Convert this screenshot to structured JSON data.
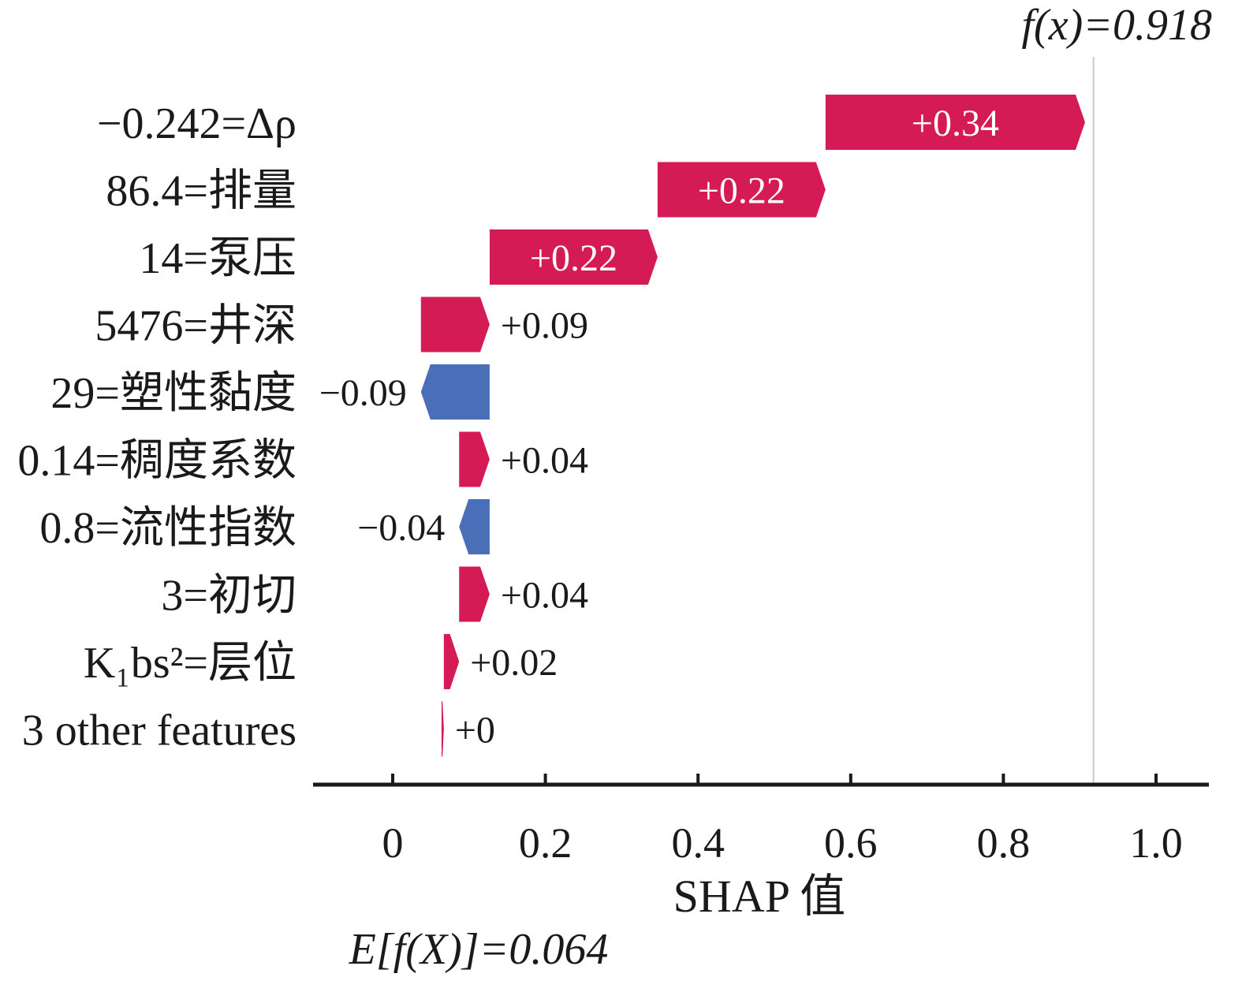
{
  "chart_data": {
    "type": "bar",
    "subtype": "shap-waterfall",
    "xlabel": "SHAP 值",
    "base_value_label": "E[f(X)]=0.064",
    "base_value": 0.064,
    "output_label": "f(x)=0.918",
    "output_value": 0.918,
    "xlim": [
      -0.105,
      1.07
    ],
    "xticks": [
      0,
      0.2,
      0.4,
      0.6,
      0.8,
      1.0
    ],
    "xtick_labels": [
      "0",
      "0.2",
      "0.4",
      "0.6",
      "0.8",
      "1.0"
    ],
    "features": [
      {
        "label": "−0.242=Δρ",
        "value": 0.34,
        "text": "+0.34"
      },
      {
        "label": "86.4=排量",
        "value": 0.22,
        "text": "+0.22"
      },
      {
        "label": "14=泵压",
        "value": 0.22,
        "text": "+0.22"
      },
      {
        "label": "5476=井深",
        "value": 0.09,
        "text": "+0.09"
      },
      {
        "label": "29=塑性黏度",
        "value": -0.09,
        "text": "−0.09"
      },
      {
        "label": "0.14=稠度系数",
        "value": 0.04,
        "text": "+0.04"
      },
      {
        "label": "0.8=流性指数",
        "value": -0.04,
        "text": "−0.04"
      },
      {
        "label": "3=初切",
        "value": 0.04,
        "text": "+0.04"
      },
      {
        "label": "K₁bs²=层位",
        "value": 0.02,
        "text": "+0.02"
      },
      {
        "label": "3 other features",
        "value": 0.003,
        "text": "+0"
      }
    ],
    "grid": false,
    "legend": "none"
  },
  "colors": {
    "positive": "#d41b55",
    "negative": "#4a6fb8",
    "axis": "#1a1a1a",
    "guide": "#c9c9c9"
  }
}
